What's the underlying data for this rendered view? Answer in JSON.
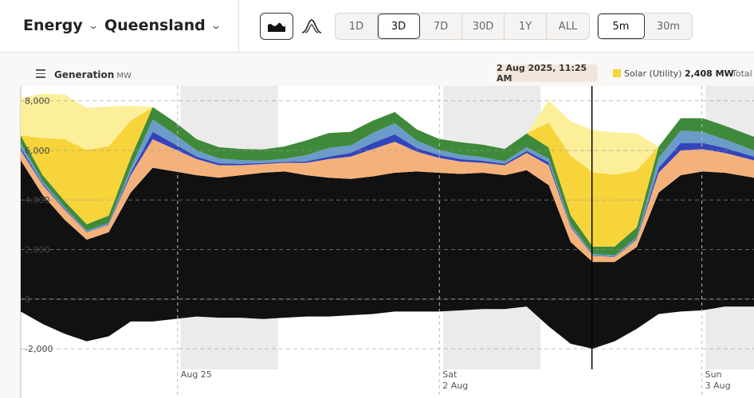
{
  "header": {
    "energy_label": "Energy",
    "region_label": "Queensland",
    "chart_type_buttons": [
      {
        "icon": "area-chart-icon",
        "active": true
      },
      {
        "icon": "distribution-curve-icon",
        "active": false
      }
    ],
    "range_buttons": [
      "1D",
      "3D",
      "7D",
      "30D",
      "1Y",
      "ALL"
    ],
    "range_active": "3D",
    "interval_buttons": [
      "5m",
      "30m"
    ],
    "interval_active": "5m"
  },
  "chart_header": {
    "title": "Generation",
    "unit": "MW",
    "hover_time": "2 Aug 2025, 11:25 AM",
    "hover_series": "Solar (Utility)",
    "hover_value": "2,408 MW",
    "total_label": "Total"
  },
  "colors": {
    "coal": "#111111",
    "gas": "#f4b27a",
    "gas_light": "#f6cba0",
    "wind": "#3f8a3a",
    "hydro": "#6b9bc9",
    "battery": "#3344bb",
    "solar_utility": "#f7d43a",
    "solar_rooftop": "#fcef9a",
    "load_negative": "#111111",
    "pumps": "#5b2a8c",
    "night_band": "#ebebeb"
  },
  "chart_data": {
    "type": "area",
    "y_ticks": [
      "8,000",
      "6,000",
      "4,000",
      "2,000",
      "0",
      "-2,000"
    ],
    "ylim": [
      -2800,
      8600
    ],
    "x_labels": [
      {
        "line1": "Aug 25",
        "line2": "",
        "t": 0.24
      },
      {
        "line1": "Sat",
        "line2": "2 Aug",
        "t": 0.597
      },
      {
        "line1": "Sun",
        "line2": "3 Aug",
        "t": 0.955
      }
    ],
    "night_bands": [
      [
        0.218,
        0.351
      ],
      [
        0.576,
        0.709
      ],
      [
        0.934,
        1.0
      ]
    ],
    "hover_t": 0.779,
    "series": [
      {
        "key": "coal",
        "values_t": [
          0,
          0.03,
          0.06,
          0.09,
          0.12,
          0.15,
          0.18,
          0.21,
          0.24,
          0.27,
          0.3,
          0.33,
          0.36,
          0.39,
          0.42,
          0.45,
          0.48,
          0.51,
          0.54,
          0.57,
          0.6,
          0.63,
          0.66,
          0.69,
          0.72,
          0.75,
          0.78,
          0.81,
          0.84,
          0.87,
          0.9,
          0.93,
          0.96,
          1.0
        ],
        "values": [
          5600,
          4200,
          3200,
          2400,
          2700,
          4300,
          5300,
          5150,
          5000,
          4900,
          5000,
          5100,
          5150,
          5000,
          4900,
          4850,
          4950,
          5100,
          5150,
          5100,
          5050,
          5100,
          5000,
          5200,
          4600,
          2300,
          1500,
          1500,
          2100,
          4300,
          5000,
          5150,
          5100,
          4900
        ]
      },
      {
        "key": "gas",
        "values": [
          400,
          400,
          400,
          300,
          300,
          700,
          1150,
          900,
          650,
          500,
          400,
          350,
          350,
          500,
          750,
          900,
          1100,
          1250,
          800,
          600,
          500,
          400,
          400,
          700,
          800,
          600,
          250,
          200,
          300,
          800,
          1000,
          900,
          800,
          700
        ]
      },
      {
        "key": "battery",
        "values": [
          100,
          50,
          40,
          20,
          20,
          100,
          300,
          200,
          100,
          80,
          60,
          40,
          40,
          60,
          100,
          150,
          250,
          300,
          150,
          120,
          100,
          80,
          60,
          80,
          120,
          50,
          20,
          20,
          30,
          200,
          300,
          250,
          200,
          150
        ]
      },
      {
        "key": "hydro",
        "values": [
          200,
          100,
          60,
          50,
          50,
          200,
          500,
          400,
          250,
          200,
          150,
          100,
          120,
          250,
          350,
          300,
          400,
          450,
          300,
          200,
          180,
          150,
          100,
          150,
          150,
          80,
          50,
          50,
          60,
          400,
          500,
          450,
          350,
          250
        ]
      },
      {
        "key": "wind",
        "values": [
          300,
          250,
          250,
          250,
          300,
          400,
          500,
          500,
          450,
          450,
          450,
          450,
          500,
          600,
          600,
          550,
          500,
          450,
          450,
          450,
          500,
          500,
          500,
          550,
          450,
          350,
          300,
          350,
          400,
          450,
          500,
          550,
          550,
          550
        ]
      },
      {
        "key": "solar_utility",
        "values": [
          0,
          1500,
          2500,
          3000,
          2800,
          1500,
          0,
          0,
          0,
          0,
          0,
          0,
          0,
          0,
          0,
          0,
          0,
          0,
          0,
          0,
          0,
          0,
          0,
          0,
          1000,
          2400,
          3000,
          2900,
          2300,
          0,
          0,
          0,
          0,
          0
        ]
      },
      {
        "key": "solar_rooftop",
        "values": [
          1500,
          1800,
          1800,
          1700,
          1600,
          600,
          0,
          0,
          0,
          0,
          0,
          0,
          0,
          0,
          0,
          0,
          0,
          0,
          0,
          0,
          0,
          0,
          0,
          0,
          900,
          1400,
          1700,
          1700,
          1500,
          0,
          0,
          0,
          0,
          0
        ]
      },
      {
        "key": "load_negative",
        "values": [
          -500,
          -1000,
          -1400,
          -1700,
          -1500,
          -900,
          -900,
          -800,
          -700,
          -750,
          -750,
          -800,
          -750,
          -700,
          -700,
          -650,
          -600,
          -500,
          -500,
          -500,
          -450,
          -400,
          -400,
          -300,
          -1100,
          -1800,
          -2000,
          -1700,
          -1200,
          -600,
          -500,
          -450,
          -300,
          -300
        ]
      }
    ]
  }
}
